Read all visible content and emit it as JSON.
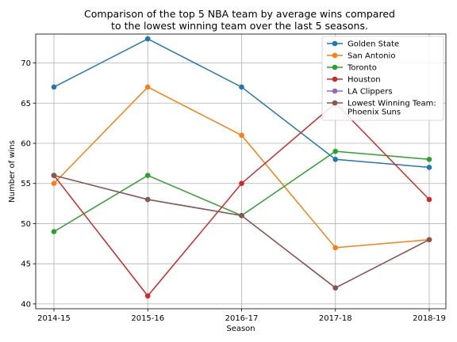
{
  "chart_data": {
    "type": "line",
    "title_lines": [
      "Comparison of the top 5 NBA team by average wins compared",
      "to the lowest winning team over the last 5 seasons."
    ],
    "xlabel": "Season",
    "ylabel": "Number of wins",
    "categories": [
      "2014-15",
      "2015-16",
      "2016-17",
      "2017-18",
      "2018-19"
    ],
    "ylim": [
      39.4,
      73.6
    ],
    "yticks": [
      40,
      45,
      50,
      55,
      60,
      65,
      70
    ],
    "grid": true,
    "legend_placement": "top-right",
    "series": [
      {
        "name": "Golden State",
        "color": "#1f77b4",
        "values": [
          67,
          73,
          67,
          58,
          57
        ]
      },
      {
        "name": "San Antonio",
        "color": "#ff7f0e",
        "values": [
          55,
          67,
          61,
          47,
          48
        ]
      },
      {
        "name": "Toronto",
        "color": "#2ca02c",
        "values": [
          49,
          56,
          51,
          59,
          58
        ]
      },
      {
        "name": "Houston",
        "color": "#d62728",
        "values": [
          56,
          41,
          55,
          65,
          53
        ]
      },
      {
        "name": "LA Clippers",
        "color": "#9467bd",
        "values": [
          56,
          53,
          51,
          42,
          48
        ]
      },
      {
        "name_lines": [
          "Lowest Winning Team:",
          "Phoenix Suns"
        ],
        "color": "#8c564b",
        "values": [
          56,
          53,
          51,
          42,
          48
        ]
      }
    ]
  }
}
